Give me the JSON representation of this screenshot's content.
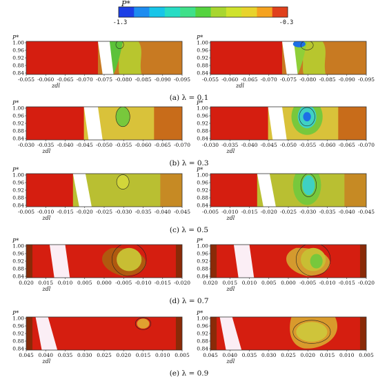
{
  "colorbar": {
    "title": "P*",
    "min_label": "-1.3",
    "max_label": "-0.3",
    "colors": [
      "#1c3fe6",
      "#1d8cf0",
      "#17c5e8",
      "#27dcc4",
      "#3fe08a",
      "#55d33f",
      "#a8d62f",
      "#cfe22c",
      "#e8d32c",
      "#f5a21f",
      "#e0401c"
    ]
  },
  "chart_data": [
    {
      "type": "heatmap",
      "caption": "(a) λ = 0.1",
      "xlabel": "zdl",
      "ylabel": "P*",
      "xticks": [
        "-0.055",
        "-0.060",
        "-0.065",
        "-0.070",
        "-0.075",
        "-0.080",
        "-0.085",
        "-0.090",
        "-0.095"
      ],
      "yticks": [
        "1.00",
        "0.96",
        "0.92",
        "0.88",
        "0.84"
      ]
    },
    {
      "type": "heatmap",
      "caption": "(b) λ = 0.3",
      "xlabel": "zdl",
      "ylabel": "P*",
      "xticks": [
        "-0.030",
        "-0.035",
        "-0.040",
        "-0.045",
        "-0.050",
        "-0.055",
        "-0.060",
        "-0.065",
        "-0.070"
      ],
      "yticks": [
        "1.00",
        "0.96",
        "0.92",
        "0.88",
        "0.84"
      ]
    },
    {
      "type": "heatmap",
      "caption": "(c) λ = 0.5",
      "xlabel": "zdl",
      "ylabel": "P*",
      "xticks": [
        "-0.005",
        "-0.010",
        "-0.015",
        "-0.020",
        "-0.025",
        "-0.030",
        "-0.035",
        "-0.040",
        "-0.045"
      ],
      "yticks": [
        "1.00",
        "0.96",
        "0.92",
        "0.88",
        "0.84"
      ]
    },
    {
      "type": "heatmap",
      "caption": "(d) λ = 0.7",
      "xlabel": "zdl",
      "ylabel": "P*",
      "xticks": [
        "0.020",
        "0.015",
        "0.010",
        "0.005",
        "0.000",
        "-0.005",
        "-0.010",
        "-0.015",
        "-0.020"
      ],
      "yticks": [
        "1.00",
        "0.96",
        "0.92",
        "0.88",
        "0.84"
      ]
    },
    {
      "type": "heatmap",
      "caption": "(e) λ = 0.9",
      "xlabel": "zdl",
      "ylabel": "P*",
      "xticks": [
        "0.045",
        "0.040",
        "0.035",
        "0.030",
        "0.025",
        "0.020",
        "0.015",
        "0.010",
        "0.005"
      ],
      "yticks": [
        "1.00",
        "0.96",
        "0.92",
        "0.88",
        "0.84"
      ]
    }
  ]
}
